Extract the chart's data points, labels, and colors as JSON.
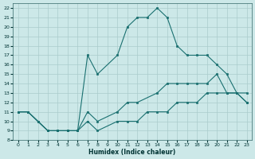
{
  "xlabel": "Humidex (Indice chaleur)",
  "xlim": [
    -0.5,
    23.5
  ],
  "ylim": [
    8,
    22.5
  ],
  "xticks": [
    0,
    1,
    2,
    3,
    4,
    5,
    6,
    7,
    8,
    9,
    10,
    11,
    12,
    13,
    14,
    15,
    16,
    17,
    18,
    19,
    20,
    21,
    22,
    23
  ],
  "yticks": [
    8,
    9,
    10,
    11,
    12,
    13,
    14,
    15,
    16,
    17,
    18,
    19,
    20,
    21,
    22
  ],
  "bg_color": "#cce8e8",
  "line_color": "#1a7070",
  "grid_color": "#aacccc",
  "series": [
    {
      "x": [
        0,
        1,
        3,
        4,
        5,
        6,
        7,
        8,
        10,
        11,
        12,
        13,
        14,
        15,
        16,
        17,
        18,
        19,
        20,
        21,
        22,
        23
      ],
      "y": [
        11,
        11,
        9,
        9,
        9,
        9,
        17,
        15,
        17,
        20,
        21,
        21,
        22,
        21,
        18,
        17,
        17,
        17,
        16,
        15,
        13,
        13
      ]
    },
    {
      "x": [
        0,
        1,
        2,
        3,
        4,
        5,
        6,
        7,
        8,
        10,
        11,
        12,
        14,
        15,
        16,
        17,
        18,
        19,
        20,
        21,
        22,
        23
      ],
      "y": [
        11,
        11,
        10,
        9,
        9,
        9,
        9,
        11,
        10,
        11,
        12,
        12,
        13,
        14,
        14,
        14,
        14,
        14,
        15,
        13,
        13,
        12
      ]
    },
    {
      "x": [
        0,
        1,
        2,
        3,
        4,
        5,
        6,
        7,
        8,
        10,
        11,
        12,
        13,
        14,
        15,
        16,
        17,
        18,
        19,
        20,
        21,
        22,
        23
      ],
      "y": [
        11,
        11,
        10,
        9,
        9,
        9,
        9,
        10,
        9,
        10,
        10,
        10,
        11,
        11,
        11,
        12,
        12,
        12,
        13,
        13,
        13,
        13,
        12
      ]
    }
  ]
}
